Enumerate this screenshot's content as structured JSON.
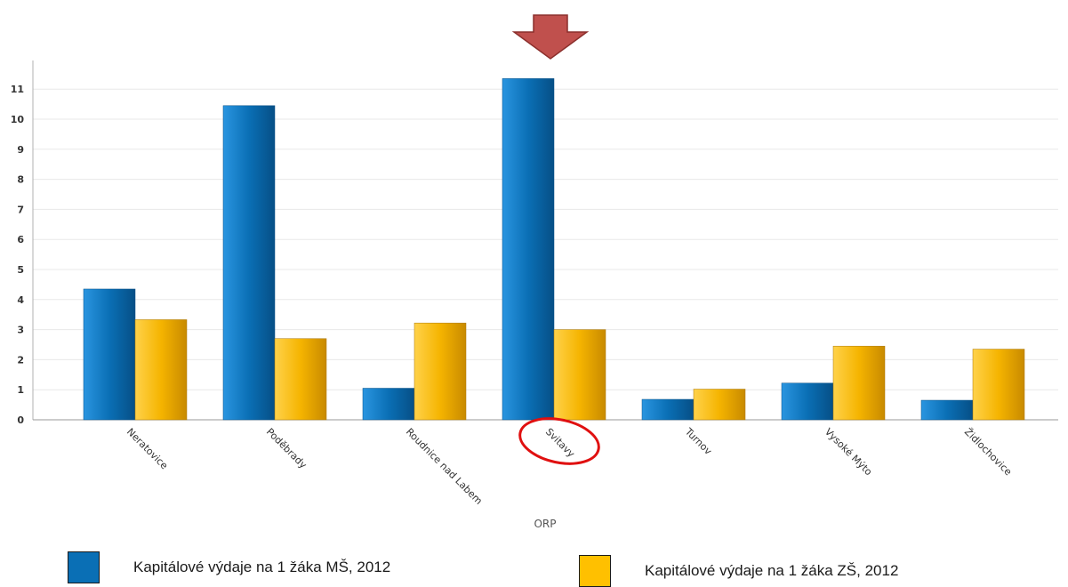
{
  "chart_data": {
    "type": "bar",
    "categories": [
      "Neratovice",
      "Poděbrady",
      "Roudnice nad Labem",
      "Svitavy",
      "Turnov",
      "Vysoké Mýto",
      "Židlochovice"
    ],
    "series": [
      {
        "name": "Kapitálové výdaje na 1 žáka MŠ, 2012",
        "values": [
          4.35,
          10.45,
          1.05,
          11.35,
          0.68,
          1.22,
          0.65
        ],
        "color": "#0a6fb5"
      },
      {
        "name": "Kapitálové výdaje na 1 žáka ZŠ, 2012",
        "values": [
          3.33,
          2.7,
          3.22,
          3.0,
          1.02,
          2.45,
          2.35
        ],
        "color": "#f5b400"
      }
    ],
    "xlabel": "ORP",
    "ylabel": "",
    "ylim": [
      0,
      12
    ],
    "yticks": [
      "0",
      "1",
      "2",
      "3",
      "4",
      "5",
      "6",
      "7",
      "8",
      "9",
      "10",
      "11"
    ],
    "grid": true,
    "legend_position": "bottom",
    "highlighted_category": "Svitavy",
    "annotations": [
      "red-arrow-pointing-down",
      "red-ellipse-around-label"
    ]
  }
}
